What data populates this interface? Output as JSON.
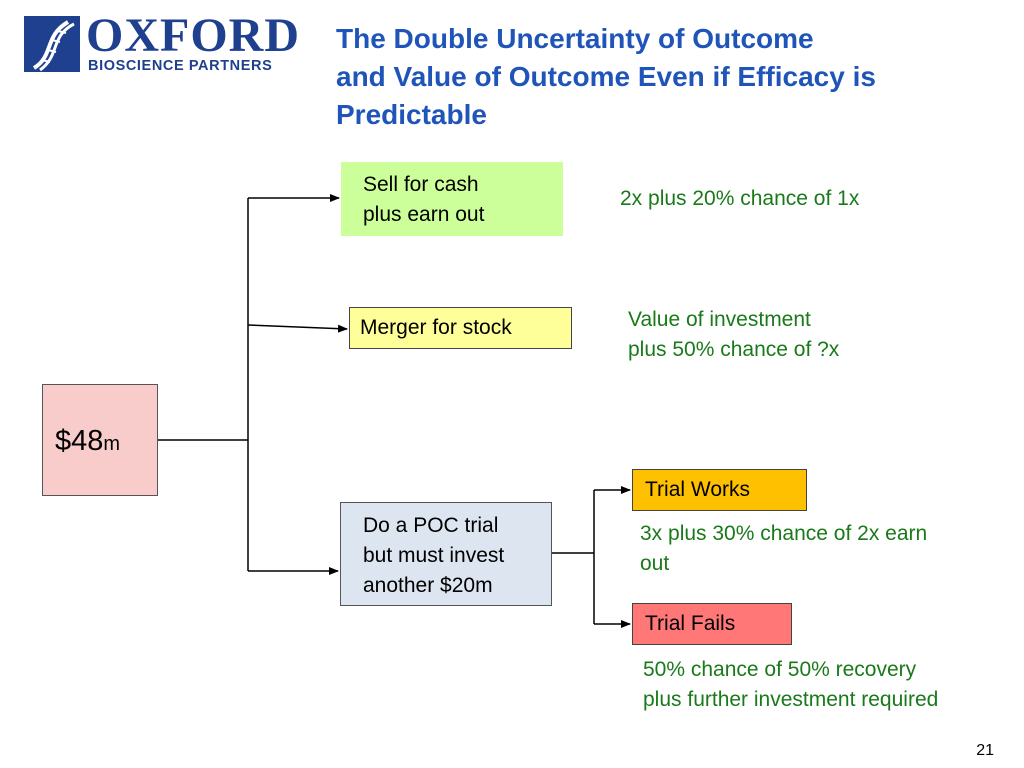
{
  "logo": {
    "word": "OXFORD",
    "subtitle": "BIOSCIENCE PARTNERS"
  },
  "title": {
    "line1": "The Double Uncertainty of Outcome",
    "line2": "and Value of Outcome Even if Efficacy is",
    "line3": "Predictable"
  },
  "diagram": {
    "root": {
      "amount": "$48",
      "unit": "m"
    },
    "sell": {
      "label_line1": "Sell for cash",
      "label_line2": "plus earn out",
      "outcome": "2x plus 20% chance of 1x"
    },
    "merger": {
      "label": "Merger for stock",
      "outcome_line1": "Value of investment",
      "outcome_line2": "plus 50% chance of ?x"
    },
    "poc": {
      "label_line1": "Do a POC trial",
      "label_line2": "but must invest",
      "label_line3": "another $20m"
    },
    "trial_works": {
      "label": "Trial Works",
      "outcome_line1": "3x plus 30% chance of 2x earn",
      "outcome_line2": "out"
    },
    "trial_fails": {
      "label": "Trial Fails",
      "outcome_line1": "50% chance of 50% recovery",
      "outcome_line2": "plus further investment required"
    }
  },
  "colors": {
    "title": "#1f55b8",
    "outcome_text": "#1a7a1a",
    "root_fill": "#f9cccc",
    "sell_fill": "#ccff99",
    "merger_fill": "#ffff99",
    "poc_fill": "#dde5f0",
    "works_fill": "#ffc000",
    "fails_fill": "#ff7777"
  },
  "page_number": "21"
}
